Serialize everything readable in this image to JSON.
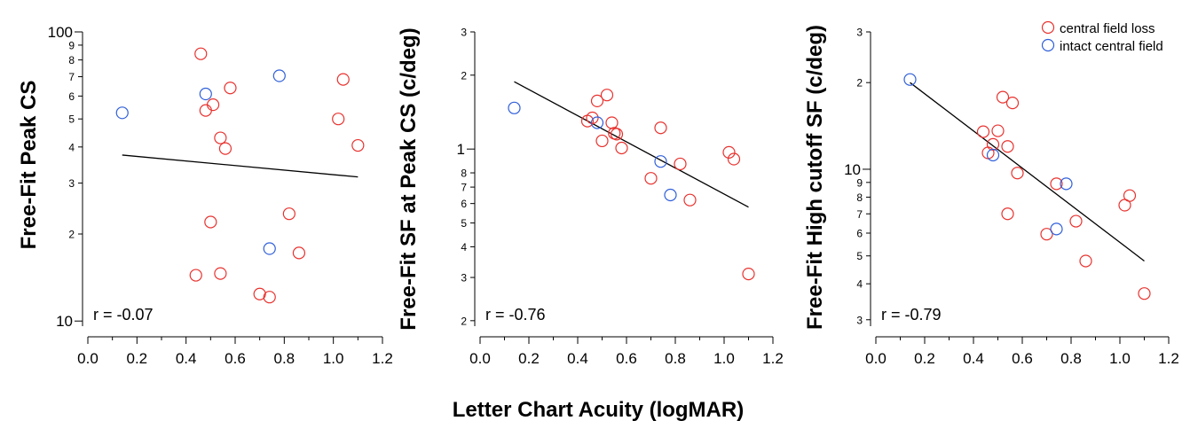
{
  "shared_xlabel": "Letter Chart Acuity (logMAR)",
  "colors": {
    "central_field_loss": "#e8322e",
    "intact_central_field": "#2f5fd9",
    "fit_line": "#000000"
  },
  "legend": [
    {
      "key": "central_field_loss",
      "label": "central field loss"
    },
    {
      "key": "intact_central_field",
      "label": "intact central field"
    }
  ],
  "chart_data": [
    {
      "type": "scatter",
      "ylabel": "Free-Fit Peak CS",
      "yscale": "log",
      "xlim": [
        0.0,
        1.2
      ],
      "ylim": [
        9.6,
        100
      ],
      "x_ticks": [
        "0.0",
        "0.2",
        "0.4",
        "0.6",
        "0.8",
        "1.0",
        "1.2"
      ],
      "y_major_ticks": [
        {
          "v": 10,
          "label": "10"
        },
        {
          "v": 100,
          "label": "100"
        }
      ],
      "y_minor_ticks": [
        {
          "v": 20,
          "label": "2"
        },
        {
          "v": 30,
          "label": "3"
        },
        {
          "v": 40,
          "label": "4"
        },
        {
          "v": 50,
          "label": "5"
        },
        {
          "v": 60,
          "label": "6"
        },
        {
          "v": 70,
          "label": "7"
        },
        {
          "v": 80,
          "label": "8"
        },
        {
          "v": 90,
          "label": "9"
        }
      ],
      "r_text": "r = -0.07",
      "fit_line": {
        "x": [
          0.14,
          1.1
        ],
        "y": [
          37.5,
          31.5
        ]
      },
      "series": [
        {
          "key": "central_field_loss",
          "points": [
            [
              0.46,
              84
            ],
            [
              0.48,
              53.5
            ],
            [
              0.51,
              56
            ],
            [
              0.58,
              64
            ],
            [
              0.54,
              43
            ],
            [
              0.56,
              39.5
            ],
            [
              0.5,
              22
            ],
            [
              0.44,
              14.4
            ],
            [
              0.54,
              14.6
            ],
            [
              0.7,
              12.4
            ],
            [
              0.74,
              12.1
            ],
            [
              0.82,
              23.5
            ],
            [
              0.86,
              17.2
            ],
            [
              1.02,
              50
            ],
            [
              1.04,
              68.5
            ],
            [
              1.1,
              40.5
            ]
          ]
        },
        {
          "key": "intact_central_field",
          "points": [
            [
              0.14,
              52.5
            ],
            [
              0.48,
              61
            ],
            [
              0.78,
              70.5
            ],
            [
              0.74,
              17.8
            ]
          ]
        }
      ]
    },
    {
      "type": "scatter",
      "ylabel": "Free-Fit SF at Peak CS (c/deg)",
      "yscale": "log",
      "xlim": [
        0.0,
        1.2
      ],
      "ylim": [
        0.19,
        3.0
      ],
      "x_ticks": [
        "0.0",
        "0.2",
        "0.4",
        "0.6",
        "0.8",
        "1.0",
        "1.2"
      ],
      "y_major_ticks": [
        {
          "v": 1,
          "label": "1"
        }
      ],
      "y_minor_ticks": [
        {
          "v": 0.2,
          "label": "2"
        },
        {
          "v": 0.3,
          "label": "3"
        },
        {
          "v": 0.4,
          "label": "4"
        },
        {
          "v": 0.5,
          "label": "5"
        },
        {
          "v": 0.6,
          "label": "6"
        },
        {
          "v": 0.7,
          "label": "7"
        },
        {
          "v": 0.8,
          "label": "8"
        },
        {
          "v": 2,
          "label": "2"
        },
        {
          "v": 3,
          "label": "3"
        }
      ],
      "r_text": "r = -0.76",
      "fit_line": {
        "x": [
          0.14,
          1.1
        ],
        "y": [
          1.88,
          0.58
        ]
      },
      "series": [
        {
          "key": "central_field_loss",
          "points": [
            [
              0.44,
              1.3
            ],
            [
              0.46,
              1.34
            ],
            [
              0.48,
              1.57
            ],
            [
              0.52,
              1.66
            ],
            [
              0.5,
              1.08
            ],
            [
              0.54,
              1.28
            ],
            [
              0.55,
              1.16
            ],
            [
              0.56,
              1.15
            ],
            [
              0.58,
              1.01
            ],
            [
              0.7,
              0.76
            ],
            [
              0.74,
              1.22
            ],
            [
              0.82,
              0.87
            ],
            [
              0.86,
              0.62
            ],
            [
              1.02,
              0.97
            ],
            [
              1.04,
              0.91
            ],
            [
              1.1,
              0.31
            ]
          ]
        },
        {
          "key": "intact_central_field",
          "points": [
            [
              0.14,
              1.47
            ],
            [
              0.48,
              1.28
            ],
            [
              0.74,
              0.89
            ],
            [
              0.78,
              0.65
            ]
          ]
        }
      ]
    },
    {
      "type": "scatter",
      "ylabel": "Free-Fit High cutoff SF (c/deg)",
      "yscale": "log",
      "xlim": [
        0.0,
        1.2
      ],
      "ylim": [
        2.85,
        30
      ],
      "x_ticks": [
        "0.0",
        "0.2",
        "0.4",
        "0.6",
        "0.8",
        "1.0",
        "1.2"
      ],
      "y_major_ticks": [
        {
          "v": 10,
          "label": "10"
        }
      ],
      "y_minor_ticks": [
        {
          "v": 3,
          "label": "3"
        },
        {
          "v": 4,
          "label": "4"
        },
        {
          "v": 5,
          "label": "5"
        },
        {
          "v": 6,
          "label": "6"
        },
        {
          "v": 7,
          "label": "7"
        },
        {
          "v": 8,
          "label": "8"
        },
        {
          "v": 9,
          "label": "9"
        },
        {
          "v": 20,
          "label": "2"
        },
        {
          "v": 30,
          "label": "3"
        }
      ],
      "r_text": "r = -0.79",
      "fit_line": {
        "x": [
          0.14,
          1.1
        ],
        "y": [
          20.0,
          4.8
        ]
      },
      "series": [
        {
          "key": "central_field_loss",
          "points": [
            [
              0.44,
              13.5
            ],
            [
              0.46,
              11.4
            ],
            [
              0.48,
              12.2
            ],
            [
              0.5,
              13.6
            ],
            [
              0.52,
              17.8
            ],
            [
              0.54,
              12.0
            ],
            [
              0.56,
              17.0
            ],
            [
              0.58,
              9.7
            ],
            [
              0.54,
              7.0
            ],
            [
              0.7,
              5.95
            ],
            [
              0.74,
              8.9
            ],
            [
              0.82,
              6.6
            ],
            [
              0.86,
              4.8
            ],
            [
              1.02,
              7.5
            ],
            [
              1.04,
              8.1
            ],
            [
              1.1,
              3.7
            ]
          ]
        },
        {
          "key": "intact_central_field",
          "points": [
            [
              0.14,
              20.5
            ],
            [
              0.48,
              11.2
            ],
            [
              0.74,
              6.2
            ],
            [
              0.78,
              8.9
            ]
          ]
        }
      ]
    }
  ]
}
